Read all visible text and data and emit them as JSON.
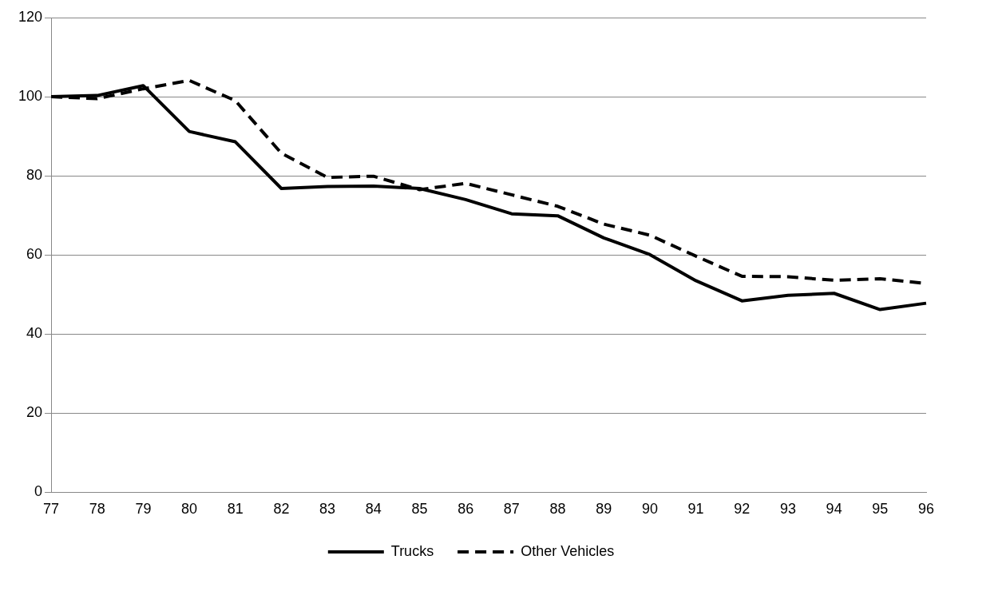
{
  "chart_data": {
    "type": "line",
    "categories": [
      "77",
      "78",
      "79",
      "80",
      "81",
      "82",
      "83",
      "84",
      "85",
      "86",
      "87",
      "88",
      "89",
      "90",
      "91",
      "92",
      "93",
      "94",
      "95",
      "96"
    ],
    "series": [
      {
        "name": "Trucks",
        "color": "#000000",
        "line_style": "solid",
        "values": [
          100,
          100.3,
          102.8,
          91.2,
          88.6,
          76.8,
          77.3,
          77.4,
          76.8,
          74.0,
          70.4,
          69.9,
          64.3,
          60.1,
          53.5,
          48.4,
          49.8,
          50.3,
          46.2,
          47.8
        ]
      },
      {
        "name": "Other Vehicles",
        "color": "#000000",
        "line_style": "dashed",
        "values": [
          100,
          99.5,
          102,
          104.1,
          99,
          85.7,
          79.6,
          79.9,
          76.5,
          78.1,
          75.2,
          72.3,
          67.8,
          65.0,
          59.7,
          54.6,
          54.5,
          53.6,
          54.0,
          52.8
        ]
      }
    ],
    "ylim": [
      0,
      120
    ],
    "yticks": [
      0,
      20,
      40,
      60,
      80,
      100,
      120
    ],
    "grid": "y",
    "legend": "bottom",
    "marker": "none"
  }
}
